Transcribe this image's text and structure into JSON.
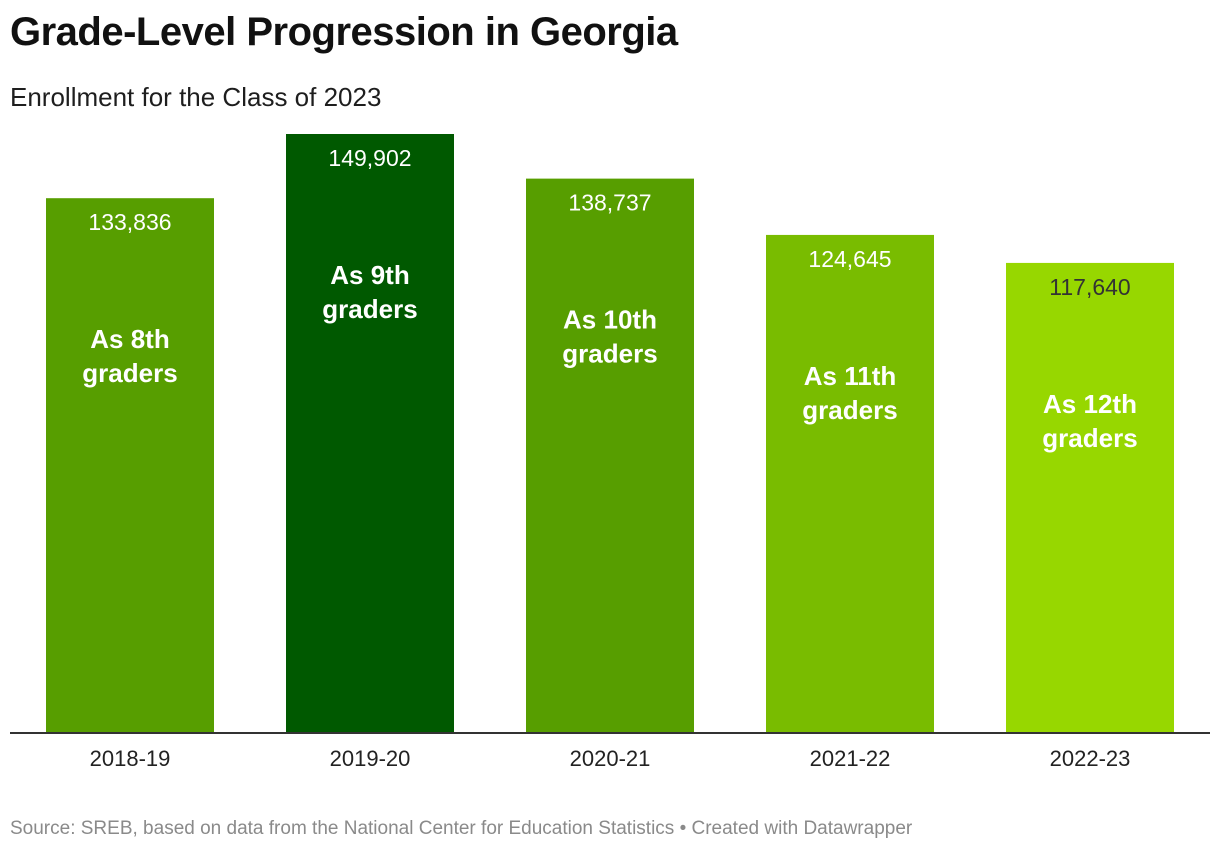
{
  "header": {
    "title": "Grade-Level Progression in Georgia",
    "subtitle": "Enrollment for the Class of 2023"
  },
  "footer": {
    "source": "Source: SREB, based on data from the National Center for Education Statistics • Created with Datawrapper"
  },
  "colors": {
    "mid_green": "#579e00",
    "dark_green": "#005900",
    "light_green_1": "#79bc00",
    "light_green_2": "#97d700",
    "axis": "#333333"
  },
  "chart_data": {
    "type": "bar",
    "categories": [
      "2018-19",
      "2019-20",
      "2020-21",
      "2021-22",
      "2022-23"
    ],
    "values": [
      133836,
      149902,
      138737,
      124645,
      117640
    ],
    "value_labels": [
      "133,836",
      "149,902",
      "138,737",
      "124,645",
      "117,640"
    ],
    "bar_labels": [
      [
        "As 8th",
        "graders"
      ],
      [
        "As 9th",
        "graders"
      ],
      [
        "As 10th",
        "graders"
      ],
      [
        "As 11th",
        "graders"
      ],
      [
        "As 12th",
        "graders"
      ]
    ],
    "bar_colors": [
      "#579e00",
      "#005900",
      "#579e00",
      "#79bc00",
      "#97d700"
    ],
    "value_label_colors": [
      "#ffffff",
      "#ffffff",
      "#ffffff",
      "#ffffff",
      "#333333"
    ],
    "ylim": [
      0,
      149902
    ],
    "grid": false,
    "legend": "none"
  }
}
